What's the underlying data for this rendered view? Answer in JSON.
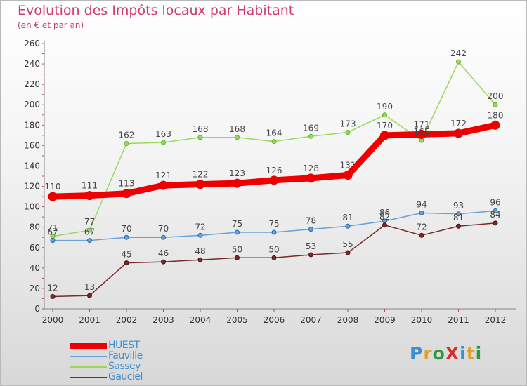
{
  "title": "Evolution des Impôts locaux par Habitant",
  "subtitle": "(en € et par an)",
  "logo": {
    "text": "ProXiti",
    "colors": [
      "#3a8fd0",
      "#e8a020",
      "#2a9a3a",
      "#d03030",
      "#3a8fd0",
      "#e8a020",
      "#2a9a3a"
    ]
  },
  "chart_data": {
    "type": "line",
    "title": "Evolution des Impôts locaux par Habitant",
    "subtitle": "(en € et par an)",
    "xlabel": "",
    "ylabel": "",
    "x": [
      "2000",
      "2001",
      "2002",
      "2003",
      "2004",
      "2005",
      "2006",
      "2007",
      "2008",
      "2009",
      "2010",
      "2011",
      "2012"
    ],
    "ylim": [
      0,
      260
    ],
    "yticks": [
      0,
      20,
      40,
      60,
      80,
      100,
      120,
      140,
      160,
      180,
      200,
      220,
      240,
      260
    ],
    "grid": false,
    "legend_position": "bottom-left",
    "series": [
      {
        "name": "Sassey",
        "color": "#9ad85a",
        "values": [
          71,
          77,
          162,
          163,
          168,
          168,
          164,
          169,
          173,
          190,
          165,
          242,
          200
        ]
      },
      {
        "name": "Fauville",
        "color": "#6aa0d8",
        "values": [
          67,
          67,
          70,
          70,
          72,
          75,
          75,
          78,
          81,
          86,
          94,
          93,
          96
        ]
      },
      {
        "name": "Gauciel",
        "color": "#7a2a2a",
        "values": [
          12,
          13,
          45,
          46,
          48,
          50,
          50,
          53,
          55,
          82,
          72,
          81,
          84
        ]
      },
      {
        "name": "HUEST",
        "color": "#ee0000",
        "values": [
          110,
          111,
          113,
          121,
          122,
          123,
          126,
          128,
          131,
          170,
          171,
          172,
          180
        ]
      }
    ],
    "legend": [
      "HUEST",
      "Fauville",
      "Sassey",
      "Gauciel"
    ]
  }
}
